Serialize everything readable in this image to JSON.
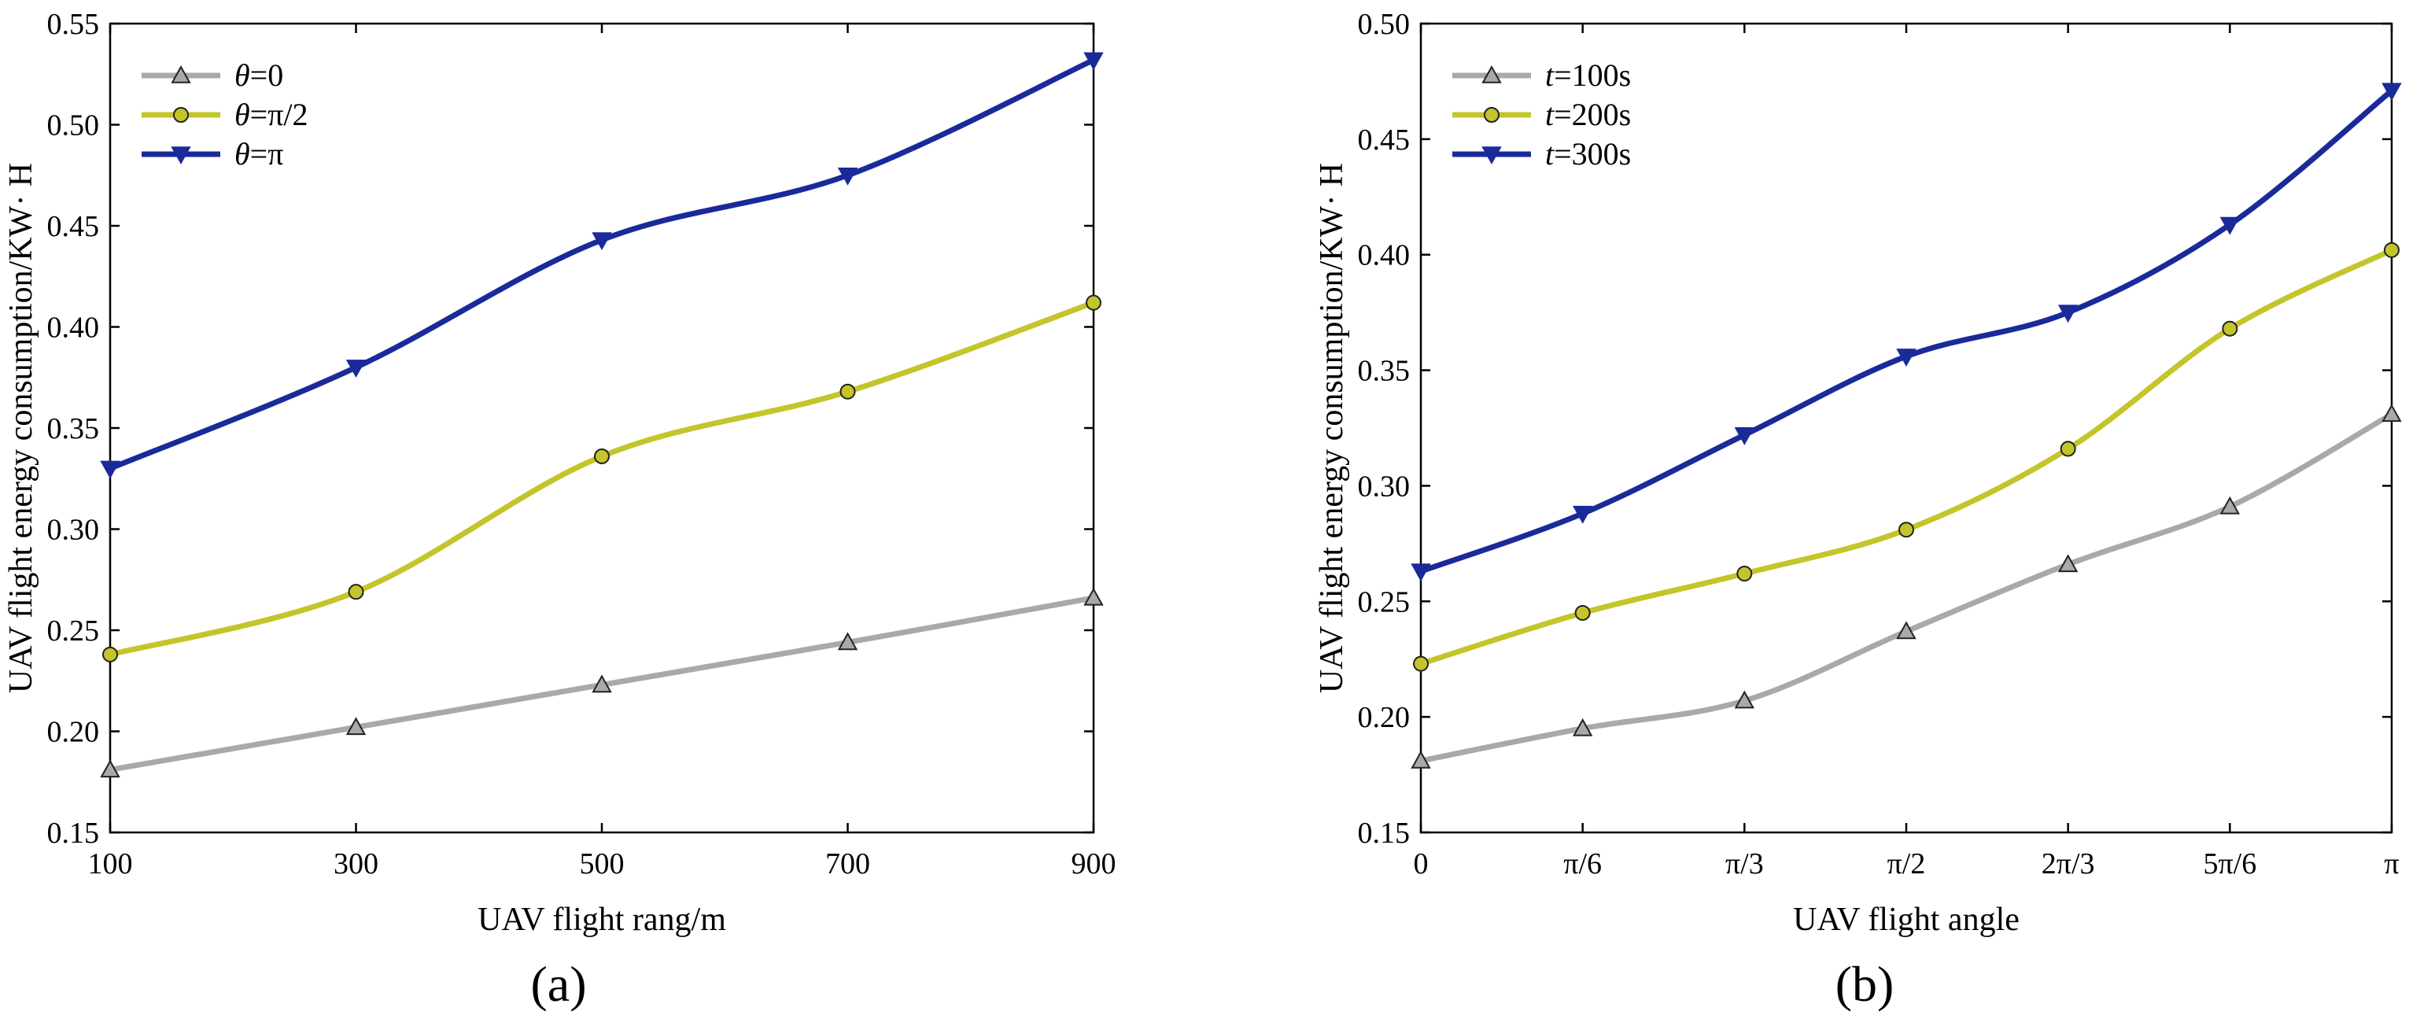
{
  "chart_data": [
    {
      "type": "line",
      "panel_label": "(a)",
      "xlabel": "UAV flight rang/m",
      "ylabel": "UAV flight energy consumption/KW· H",
      "x": [
        100,
        300,
        500,
        700,
        900
      ],
      "xticks": [
        "100",
        "300",
        "500",
        "700",
        "900"
      ],
      "yticks": [
        "0.15",
        "0.20",
        "0.25",
        "0.30",
        "0.35",
        "0.40",
        "0.45",
        "0.50",
        "0.55"
      ],
      "ylim": [
        0.15,
        0.55
      ],
      "legend_position": "top-left",
      "series": [
        {
          "name": "θ=0",
          "label_var": "θ",
          "label_rest": "=0",
          "marker": "triangle-up",
          "color": "#a9a9a9",
          "values": [
            0.181,
            0.202,
            0.223,
            0.244,
            0.266
          ]
        },
        {
          "name": "θ=π/2",
          "label_var": "θ",
          "label_rest": "=π/2",
          "marker": "circle",
          "color": "#c3c52a",
          "values": [
            0.238,
            0.269,
            0.336,
            0.368,
            0.412
          ]
        },
        {
          "name": "θ=π",
          "label_var": "θ",
          "label_rest": "=π",
          "marker": "triangle-down",
          "color": "#1a2a9a",
          "values": [
            0.33,
            0.38,
            0.443,
            0.475,
            0.532
          ]
        }
      ]
    },
    {
      "type": "line",
      "panel_label": "(b)",
      "xlabel": "UAV flight angle",
      "ylabel": "UAV flight energy consumption/KW· H",
      "x": [
        0,
        1,
        2,
        3,
        4,
        5,
        6
      ],
      "xticks": [
        "0",
        "π/6",
        "π/3",
        "π/2",
        "2π/3",
        "5π/6",
        "π"
      ],
      "yticks": [
        "0.15",
        "0.20",
        "0.25",
        "0.30",
        "0.35",
        "0.40",
        "0.45",
        "0.50"
      ],
      "ylim": [
        0.15,
        0.5
      ],
      "legend_position": "top-left",
      "series": [
        {
          "name": "t=100s",
          "label_var": "t",
          "label_rest": "=100s",
          "marker": "triangle-up",
          "color": "#a9a9a9",
          "values": [
            0.181,
            0.195,
            0.207,
            0.237,
            0.266,
            0.291,
            0.331
          ]
        },
        {
          "name": "t=200s",
          "label_var": "t",
          "label_rest": "=200s",
          "marker": "circle",
          "color": "#c3c52a",
          "values": [
            0.223,
            0.245,
            0.262,
            0.281,
            0.316,
            0.368,
            0.402
          ]
        },
        {
          "name": "t=300s",
          "label_var": "t",
          "label_rest": "=300s",
          "marker": "triangle-down",
          "color": "#1a2a9a",
          "values": [
            0.263,
            0.288,
            0.322,
            0.356,
            0.375,
            0.413,
            0.471
          ]
        }
      ]
    }
  ]
}
